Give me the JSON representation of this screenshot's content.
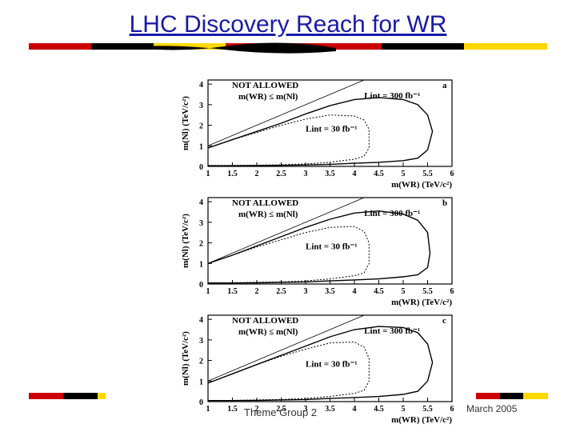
{
  "slide": {
    "title": "LHC Discovery Reach for WR",
    "footer_left": "Theme Group 2",
    "footer_right": "March 2005",
    "stripe_colors": [
      "#cc0000",
      "#000000",
      "#ffd800",
      "#cc0000",
      "#000000",
      "#ffd800"
    ]
  },
  "chart_data": [
    {
      "type": "line",
      "panel_label": "a",
      "xlabel": "m(WR) (TeV/c²)",
      "ylabel": "m(Nl) (TeV/c²)",
      "xlim": [
        1,
        6
      ],
      "ylim": [
        0,
        4.2
      ],
      "x_ticks": [
        "1",
        "1.5",
        "2",
        "2.5",
        "3",
        "3.5",
        "4",
        "4.5",
        "5",
        "5.5",
        "6"
      ],
      "y_ticks": [
        "0",
        "1",
        "2",
        "3",
        "4"
      ],
      "annotations": [
        "NOT ALLOWED",
        "m(WR) ≤ m(Nl)"
      ],
      "series": [
        {
          "name": "Lint = 300 fb⁻¹",
          "style": "solid",
          "x": [
            1,
            1.5,
            2,
            2.5,
            3,
            3.5,
            4,
            4.5,
            5,
            5.3,
            5.5,
            5.6,
            5.5,
            5.3,
            5,
            4.5,
            4,
            3.5,
            3,
            2.5,
            2,
            1.5,
            1
          ],
          "y": [
            0.9,
            1.3,
            1.7,
            2.1,
            2.55,
            2.95,
            3.25,
            3.35,
            3.25,
            3.0,
            2.5,
            1.7,
            0.8,
            0.4,
            0.28,
            0.2,
            0.15,
            0.1,
            0.07,
            0.05,
            0.04,
            0.03,
            0.03
          ]
        },
        {
          "name": "Lint = 30 fb⁻¹",
          "style": "dashed",
          "x": [
            1,
            1.5,
            2,
            2.5,
            3,
            3.5,
            4,
            4.2,
            4.3,
            4.3,
            4.2,
            4,
            3.5,
            3,
            2.5,
            2,
            1.5,
            1
          ],
          "y": [
            0.9,
            1.3,
            1.65,
            2.0,
            2.3,
            2.5,
            2.45,
            2.25,
            1.8,
            0.9,
            0.5,
            0.35,
            0.2,
            0.12,
            0.08,
            0.06,
            0.05,
            0.05
          ]
        }
      ]
    },
    {
      "type": "line",
      "panel_label": "b",
      "xlabel": "m(WR) (TeV/c²)",
      "ylabel": "m(Nl) (TeV/c²)",
      "xlim": [
        1,
        6
      ],
      "ylim": [
        0,
        4.2
      ],
      "x_ticks": [
        "1",
        "1.5",
        "2",
        "2.5",
        "3",
        "3.5",
        "4",
        "4.5",
        "5",
        "5.5",
        "6"
      ],
      "y_ticks": [
        "0",
        "1",
        "2",
        "3",
        "4"
      ],
      "annotations": [
        "NOT ALLOWED",
        "m(WR) ≤ m(Nl)"
      ],
      "series": [
        {
          "name": "Lint = 300 fb⁻¹",
          "style": "solid",
          "x": [
            1,
            1.5,
            2,
            2.5,
            3,
            3.5,
            4,
            4.5,
            5,
            5.3,
            5.5,
            5.55,
            5.5,
            5.3,
            5,
            4.5,
            4,
            3.5,
            3,
            2.5,
            2,
            1.5,
            1
          ],
          "y": [
            1.0,
            1.4,
            1.85,
            2.3,
            2.75,
            3.15,
            3.45,
            3.55,
            3.4,
            3.1,
            2.5,
            1.5,
            0.8,
            0.45,
            0.35,
            0.25,
            0.2,
            0.15,
            0.1,
            0.08,
            0.06,
            0.05,
            0.05
          ]
        },
        {
          "name": "Lint = 30 fb⁻¹",
          "style": "dashed",
          "x": [
            1,
            1.5,
            2,
            2.5,
            3,
            3.5,
            4,
            4.2,
            4.3,
            4.3,
            4.2,
            4,
            3.5,
            3,
            2.5,
            2,
            1.5,
            1
          ],
          "y": [
            1.0,
            1.4,
            1.8,
            2.15,
            2.5,
            2.75,
            2.8,
            2.55,
            2.0,
            1.0,
            0.55,
            0.4,
            0.25,
            0.15,
            0.1,
            0.08,
            0.06,
            0.06
          ]
        }
      ]
    },
    {
      "type": "line",
      "panel_label": "c",
      "xlabel": "m(WR) (TeV/c²)",
      "ylabel": "m(Nl) (TeV/c²)",
      "xlim": [
        1,
        6
      ],
      "ylim": [
        0,
        4.2
      ],
      "x_ticks": [
        "1",
        "1.5",
        "2",
        "2.5",
        "3",
        "3.5",
        "4",
        "4.5",
        "5",
        "5.5",
        "6"
      ],
      "y_ticks": [
        "0",
        "1",
        "2",
        "3",
        "4"
      ],
      "annotations": [
        "NOT ALLOWED",
        "m(WR) ≤ m(Nl)"
      ],
      "series": [
        {
          "name": "Lint = 300 fb⁻¹",
          "style": "solid",
          "x": [
            1,
            1.5,
            2,
            2.5,
            3,
            3.5,
            4,
            4.5,
            5,
            5.3,
            5.5,
            5.6,
            5.5,
            5.3,
            5,
            4.5,
            4,
            3.5,
            3,
            2.5,
            2,
            1.5,
            1
          ],
          "y": [
            0.9,
            1.35,
            1.8,
            2.25,
            2.7,
            3.15,
            3.5,
            3.65,
            3.6,
            3.35,
            2.8,
            1.9,
            1.0,
            0.5,
            0.35,
            0.25,
            0.2,
            0.15,
            0.1,
            0.08,
            0.06,
            0.05,
            0.05
          ]
        },
        {
          "name": "Lint = 30 fb⁻¹",
          "style": "dashed",
          "x": [
            1,
            1.5,
            2,
            2.5,
            3,
            3.5,
            4,
            4.2,
            4.3,
            4.3,
            4.2,
            4,
            3.5,
            3,
            2.5,
            2,
            1.5,
            1
          ],
          "y": [
            0.9,
            1.35,
            1.8,
            2.2,
            2.55,
            2.85,
            2.9,
            2.65,
            2.1,
            1.0,
            0.55,
            0.4,
            0.25,
            0.15,
            0.1,
            0.08,
            0.06,
            0.06
          ]
        }
      ]
    }
  ]
}
